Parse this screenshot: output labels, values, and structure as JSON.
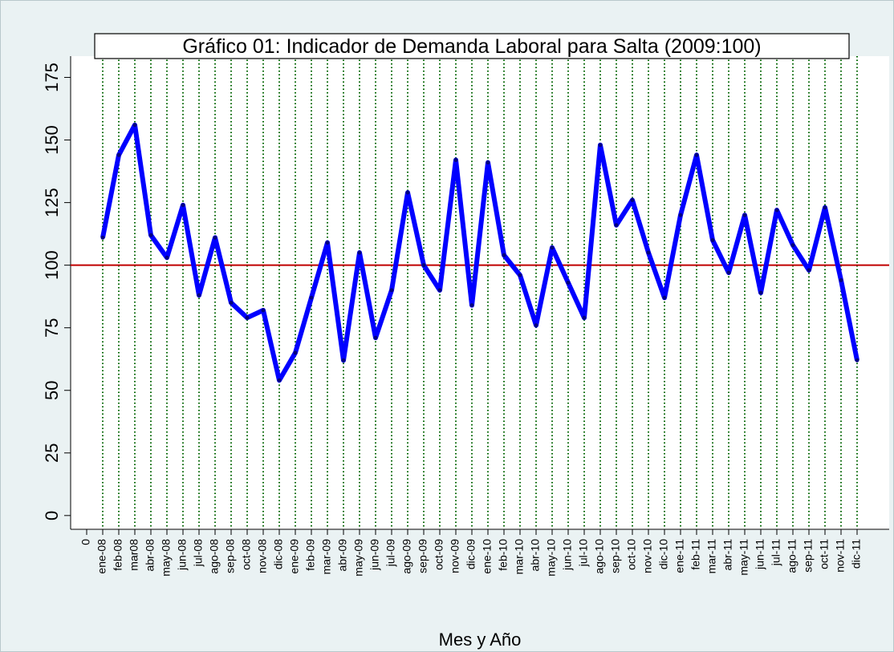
{
  "chart_data": {
    "type": "line",
    "title": "Gráfico 01: Indicador de Demanda Laboral para Salta (2009:100)",
    "xlabel": "Mes y Año",
    "x": [
      1,
      2,
      3,
      4,
      5,
      6,
      7,
      8,
      9,
      10,
      11,
      12,
      13,
      14,
      15,
      16,
      17,
      18,
      19,
      20,
      21,
      22,
      23,
      24,
      25,
      26,
      27,
      28,
      29,
      30,
      31,
      32,
      33,
      34,
      35,
      36,
      37,
      38,
      39,
      40,
      41,
      42,
      43,
      44,
      45,
      46,
      47,
      48
    ],
    "values": [
      111,
      144,
      156,
      112,
      103,
      124,
      88,
      111,
      85,
      79,
      82,
      54,
      65,
      87,
      109,
      62,
      105,
      71,
      90,
      129,
      100,
      90,
      142,
      84,
      141,
      104,
      96,
      76,
      107,
      93,
      79,
      148,
      116,
      126,
      105,
      87,
      120,
      144,
      110,
      97,
      120,
      89,
      122,
      108,
      98,
      123,
      94,
      62
    ],
    "color": "#0000ff",
    "xlim": [
      -1,
      50
    ],
    "xticks": [
      0,
      {
        "value": 1,
        "label": "ene-08"
      },
      {
        "value": 2,
        "label": "feb-08"
      },
      {
        "value": 3,
        "label": "mar08"
      },
      {
        "value": 4,
        "label": "abr-08"
      },
      {
        "value": 5,
        "label": "may-08"
      },
      {
        "value": 6,
        "label": "jun-08"
      },
      {
        "value": 7,
        "label": "jul-08"
      },
      {
        "value": 8,
        "label": "ago-08"
      },
      {
        "value": 9,
        "label": "sep-08"
      },
      {
        "value": 10,
        "label": "oct-08"
      },
      {
        "value": 11,
        "label": "nov-08"
      },
      {
        "value": 12,
        "label": "dic-08"
      },
      {
        "value": 13,
        "label": "ene-09"
      },
      {
        "value": 14,
        "label": "feb-09"
      },
      {
        "value": 15,
        "label": "mar-09"
      },
      {
        "value": 16,
        "label": "abr-09"
      },
      {
        "value": 17,
        "label": "may-09"
      },
      {
        "value": 18,
        "label": "jun-09"
      },
      {
        "value": 19,
        "label": "jul-09"
      },
      {
        "value": 20,
        "label": "ago-09"
      },
      {
        "value": 21,
        "label": "sep-09"
      },
      {
        "value": 22,
        "label": "oct-09"
      },
      {
        "value": 23,
        "label": "nov-09"
      },
      {
        "value": 24,
        "label": "dic-09"
      },
      {
        "value": 25,
        "label": "ene-10"
      },
      {
        "value": 26,
        "label": "feb-10"
      },
      {
        "value": 27,
        "label": "mar-10"
      },
      {
        "value": 28,
        "label": "abr-10"
      },
      {
        "value": 29,
        "label": "may-10"
      },
      {
        "value": 30,
        "label": "jun-10"
      },
      {
        "value": 31,
        "label": "jul-10"
      },
      {
        "value": 32,
        "label": "ago-10"
      },
      {
        "value": 33,
        "label": "sep-10"
      },
      {
        "value": 34,
        "label": "oct-10"
      },
      {
        "value": 35,
        "label": "nov-10"
      },
      {
        "value": 36,
        "label": "dic-10"
      },
      {
        "value": 37,
        "label": "ene-11"
      },
      {
        "value": 38,
        "label": "feb-11"
      },
      {
        "value": 39,
        "label": "mar-11"
      },
      {
        "value": 40,
        "label": "abr-11"
      },
      {
        "value": 41,
        "label": "may-11"
      },
      {
        "value": 42,
        "label": "jun-11"
      },
      {
        "value": 43,
        "label": "jul-11"
      },
      {
        "value": 44,
        "label": "ago-11"
      },
      {
        "value": 45,
        "label": "sep-11"
      },
      {
        "value": 46,
        "label": "oct-11"
      },
      {
        "value": 47,
        "label": "nov-11"
      },
      {
        "value": 48,
        "label": "dic-11"
      }
    ],
    "ylim": [
      -5.5,
      183.5
    ],
    "yticks": [
      0,
      25,
      50,
      75,
      100,
      125,
      150,
      175
    ],
    "xgrid": true,
    "grid_color": "#006400",
    "reference_line": {
      "value": 100,
      "color": "#c00000"
    }
  }
}
